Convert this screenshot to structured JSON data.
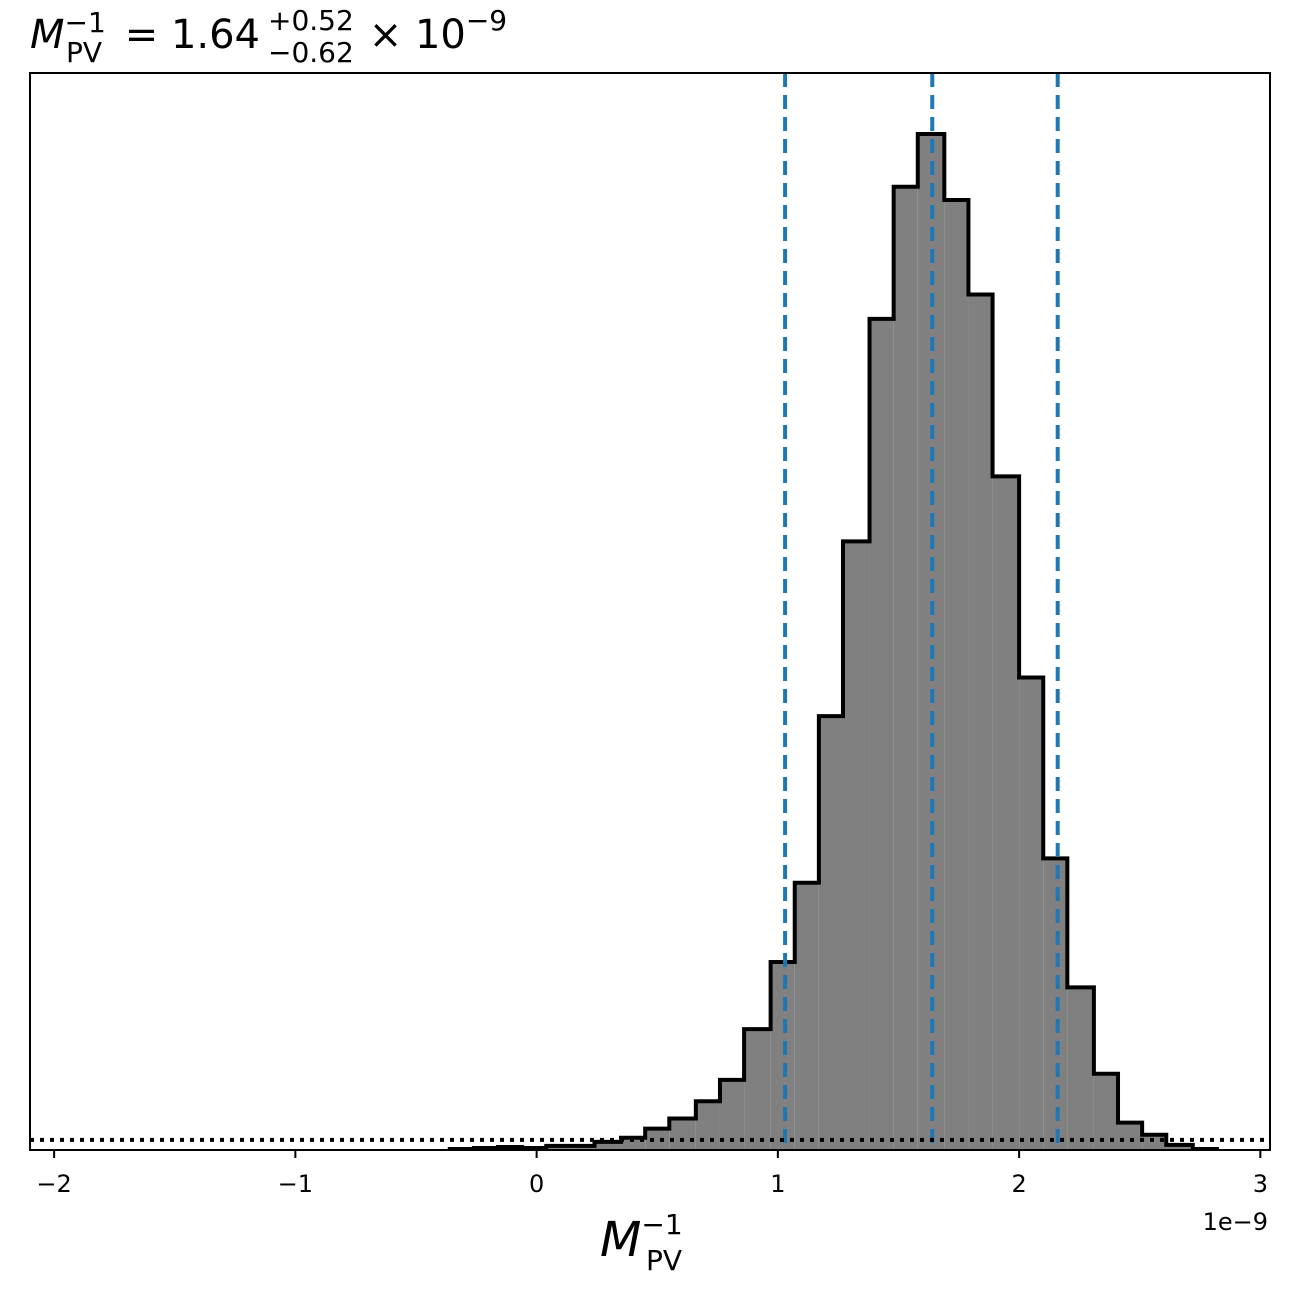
{
  "chart_data": {
    "type": "histogram",
    "title": {
      "symbol": "M",
      "subscript": "PV",
      "superscript": "−1",
      "equals": " = 1.64",
      "upper_err": "+0.52",
      "lower_err": "−0.62",
      "times": " × 10",
      "exponent": "−9"
    },
    "xlabel": {
      "symbol": "M",
      "subscript": "PV",
      "superscript": "−1"
    },
    "offset_text": "1e−9",
    "x_ticks": [
      {
        "value": -2,
        "label": "−2"
      },
      {
        "value": -1,
        "label": "−1"
      },
      {
        "value": 0,
        "label": "0"
      },
      {
        "value": 1,
        "label": "1"
      },
      {
        "value": 2,
        "label": "2"
      },
      {
        "value": 3,
        "label": "3"
      }
    ],
    "xlim": [
      -2.1,
      3.04
    ],
    "ylim": [
      0,
      1.06
    ],
    "scale": "1e-9",
    "bin_edges": [
      -0.36,
      -0.26,
      -0.16,
      -0.06,
      0.04,
      0.14,
      0.24,
      0.35,
      0.45,
      0.55,
      0.66,
      0.76,
      0.86,
      0.97,
      1.07,
      1.17,
      1.27,
      1.38,
      1.48,
      1.58,
      1.69,
      1.79,
      1.89,
      2.0,
      2.1,
      2.2,
      2.31,
      2.41,
      2.51,
      2.61,
      2.72,
      2.82
    ],
    "counts": [
      0.001,
      0.002,
      0.003,
      0.002,
      0.004,
      0.004,
      0.008,
      0.012,
      0.021,
      0.031,
      0.048,
      0.069,
      0.119,
      0.185,
      0.263,
      0.427,
      0.599,
      0.818,
      0.948,
      1.0,
      0.935,
      0.842,
      0.663,
      0.465,
      0.287,
      0.16,
      0.075,
      0.027,
      0.015,
      0.005,
      0.001
    ],
    "hist_fill_color": "#808080",
    "hist_edge_color": "#000000",
    "vlines": {
      "values": [
        1.03,
        1.64,
        2.16
      ],
      "color": "#1f77b4",
      "style": "dashed"
    },
    "hline": {
      "value": 0.01,
      "color": "#000000",
      "style": "dotted"
    },
    "grid": false,
    "legend": "none"
  }
}
